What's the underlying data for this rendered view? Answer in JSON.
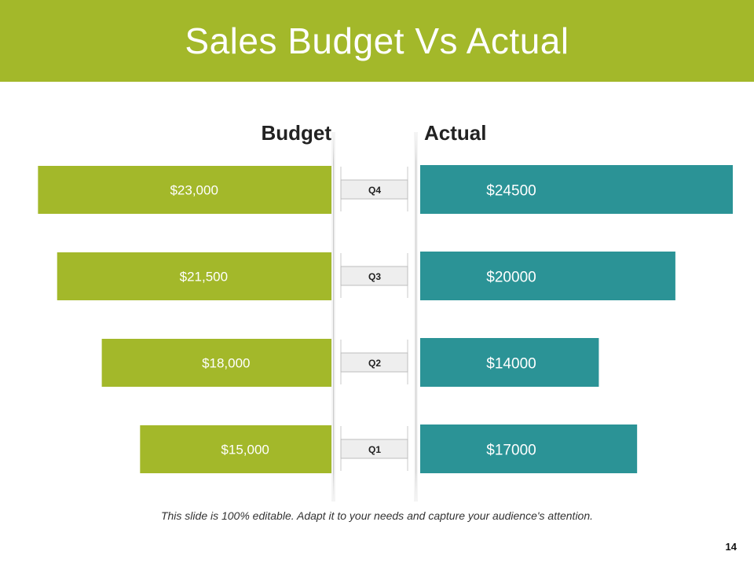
{
  "slide": {
    "title": "Sales Budget Vs Actual",
    "footnote": "This slide is 100% editable. Adapt it to your needs and capture your audience's attention.",
    "page_number": "14",
    "colors": {
      "header": "#a3b82a",
      "budget": "#a3b82a",
      "actual": "#2b9396",
      "label_box": "#eeeeee"
    }
  },
  "chart_data": {
    "type": "bar",
    "orientation": "horizontal-diverging",
    "categories": [
      "Q4",
      "Q3",
      "Q2",
      "Q1"
    ],
    "series": [
      {
        "name": "Budget",
        "values": [
          23000,
          21500,
          18000,
          15000
        ],
        "labels": [
          "$23,000",
          "$21,500",
          "$18,000",
          "$15,000"
        ],
        "color": "#a3b82a"
      },
      {
        "name": "Actual",
        "values": [
          24500,
          20000,
          14000,
          17000
        ],
        "labels": [
          "$24500",
          "$20000",
          "$14000",
          "$17000"
        ],
        "color": "#2b9396"
      }
    ],
    "legend": "column headers above bars"
  }
}
